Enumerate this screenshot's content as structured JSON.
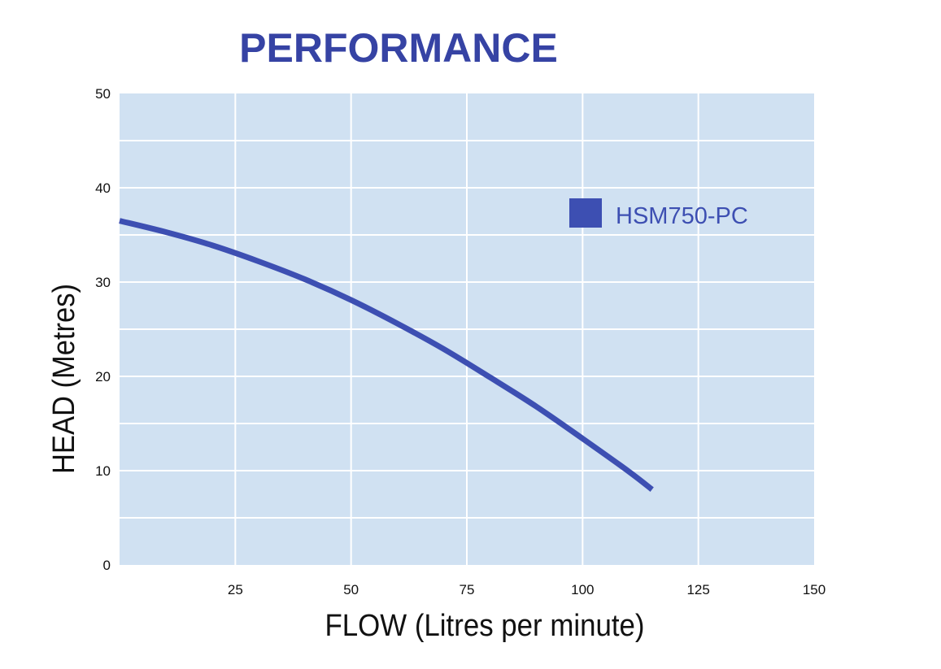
{
  "chart_data": {
    "type": "line",
    "title": "PERFORMANCE",
    "xlabel": "FLOW (Litres per minute)",
    "ylabel": "HEAD (Metres)",
    "xlim": [
      0,
      150
    ],
    "ylim": [
      0,
      50
    ],
    "x_ticks": [
      25,
      50,
      75,
      100,
      125,
      150
    ],
    "y_ticks": [
      0,
      10,
      20,
      30,
      40,
      50
    ],
    "grid": true,
    "legend_position": "top-right",
    "series": [
      {
        "name": "HSM750-PC",
        "color": "#3d4fb2",
        "x": [
          0,
          10,
          20,
          30,
          40,
          50,
          60,
          70,
          80,
          90,
          100,
          110,
          115
        ],
        "y": [
          36.5,
          35.3,
          33.9,
          32.2,
          30.3,
          28.1,
          25.6,
          22.9,
          19.9,
          16.8,
          13.4,
          9.9,
          8.0
        ]
      }
    ],
    "colors": {
      "plot_background": "#d0e1f2",
      "grid": "#ffffff",
      "title": "#3643a4",
      "legend_text": "#3d4fb2"
    }
  }
}
